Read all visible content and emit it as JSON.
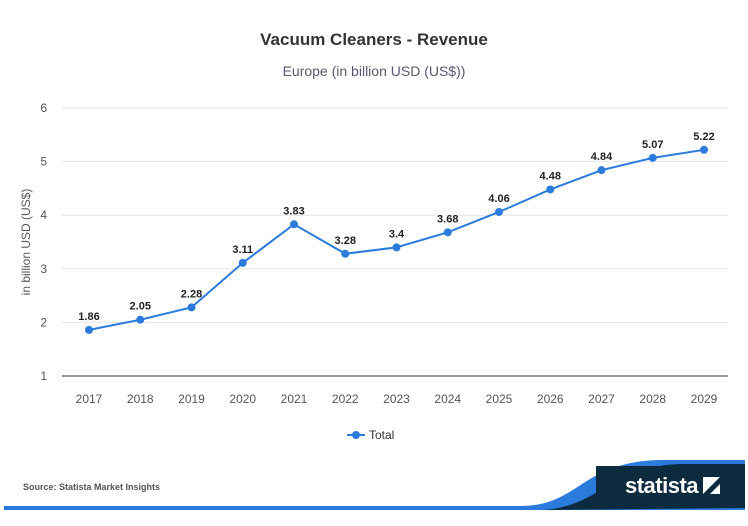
{
  "chart_data": {
    "type": "line",
    "title": "Vacuum Cleaners - Revenue",
    "subtitle": "Europe (in billion USD (US$))",
    "xlabel": "",
    "ylabel": "in billion USD (US$)",
    "ylim": [
      1,
      6
    ],
    "yticks": [
      "1",
      "2",
      "3",
      "4",
      "5",
      "6"
    ],
    "grid": true,
    "legend_position": "bottom-center",
    "categories": [
      "2017",
      "2018",
      "2019",
      "2020",
      "2021",
      "2022",
      "2023",
      "2024",
      "2025",
      "2026",
      "2027",
      "2028",
      "2029"
    ],
    "series": [
      {
        "name": "Total",
        "color": "#2b7bdc",
        "values": [
          1.86,
          2.05,
          2.28,
          3.11,
          3.83,
          3.28,
          3.4,
          3.68,
          4.06,
          4.48,
          4.84,
          5.07,
          5.22
        ],
        "labels": [
          "1.86",
          "2.05",
          "2.28",
          "3.11",
          "3.83",
          "3.28",
          "3.4",
          "3.68",
          "4.06",
          "4.48",
          "4.84",
          "5.07",
          "5.22"
        ]
      }
    ]
  },
  "footer": {
    "source": "Source: Statista Market Insights",
    "brand": "statista"
  }
}
